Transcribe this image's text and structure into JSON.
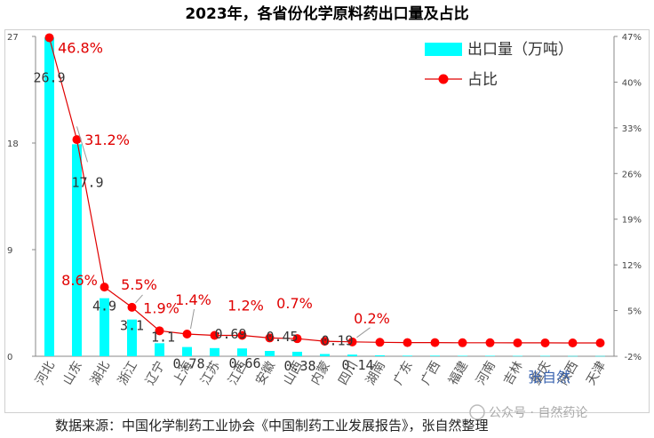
{
  "chart_data": {
    "type": "bar+line",
    "title": "2023年，各省份化学原料药出口量及占比",
    "categories": [
      "河北",
      "山东",
      "湖北",
      "浙江",
      "辽宁",
      "上海",
      "江苏",
      "江西",
      "安徽",
      "山西",
      "内蒙",
      "四川",
      "湖南",
      "广东",
      "广西",
      "福建",
      "河南",
      "吉林",
      "重庆",
      "陕西",
      "天津"
    ],
    "series": [
      {
        "name": "出口量（万吨）",
        "type": "bar",
        "axis": "left",
        "values": [
          26.9,
          17.9,
          4.9,
          3.1,
          1.1,
          0.78,
          0.69,
          0.66,
          0.45,
          0.38,
          0.19,
          0.14,
          0.08,
          0.05,
          0.05,
          0.04,
          0.04,
          0.03,
          0.03,
          0.02,
          0.02
        ]
      },
      {
        "name": "占比",
        "type": "line",
        "axis": "right",
        "unit": "%",
        "values": [
          46.8,
          31.2,
          8.6,
          5.5,
          1.9,
          1.4,
          1.2,
          1.2,
          0.8,
          0.7,
          0.3,
          0.2,
          0.14,
          0.09,
          0.09,
          0.07,
          0.07,
          0.05,
          0.05,
          0.04,
          0.04
        ]
      }
    ],
    "bar_labels": [
      {
        "index": 0,
        "text": "26.9"
      },
      {
        "index": 1,
        "text": "17.9"
      },
      {
        "index": 2,
        "text": "4.9"
      },
      {
        "index": 3,
        "text": "3.1"
      },
      {
        "index": 4,
        "text": "1.1"
      },
      {
        "index": 5,
        "text": "0.78"
      },
      {
        "index": 6,
        "text": "0.69"
      },
      {
        "index": 7,
        "text": "0.66"
      },
      {
        "index": 8,
        "text": "0.45"
      },
      {
        "index": 9,
        "text": "0.38"
      },
      {
        "index": 10,
        "text": "0.19"
      },
      {
        "index": 11,
        "text": "0.14"
      }
    ],
    "pct_labels": [
      {
        "index": 0,
        "text": "46.8%"
      },
      {
        "index": 1,
        "text": "31.2%"
      },
      {
        "index": 2,
        "text": "8.6%"
      },
      {
        "index": 3,
        "text": "5.5%"
      },
      {
        "index": 4,
        "text": "1.9%"
      },
      {
        "index": 5,
        "text": "1.4%"
      },
      {
        "index": 7,
        "text": "1.2%"
      },
      {
        "index": 9,
        "text": "0.7%"
      },
      {
        "index": 11,
        "text": "0.2%"
      }
    ],
    "y_left": {
      "min": 0,
      "max": 27,
      "ticks": [
        0,
        9,
        18,
        27
      ],
      "tick_labels": [
        "0",
        "9",
        "18",
        "27"
      ]
    },
    "y_right": {
      "min": -2,
      "max": 47,
      "ticks": [
        -2,
        5,
        12,
        19,
        26,
        33,
        40,
        47
      ],
      "tick_labels": [
        "-2%",
        "5%",
        "12%",
        "19%",
        "26%",
        "33%",
        "40%",
        "47%"
      ]
    },
    "legend": {
      "position": "top-right",
      "bar_label": "出口量（万吨）",
      "line_label": "占比"
    },
    "colors": {
      "bar": "#00ffff",
      "line": "#e00000",
      "marker": "#ff0000"
    }
  },
  "footer": {
    "source": "数据来源：中国化学制药工业协会《中国制药工业发展报告》，张自然整理",
    "signature": "张自然",
    "watermark": "公众号 · 自然药论"
  }
}
